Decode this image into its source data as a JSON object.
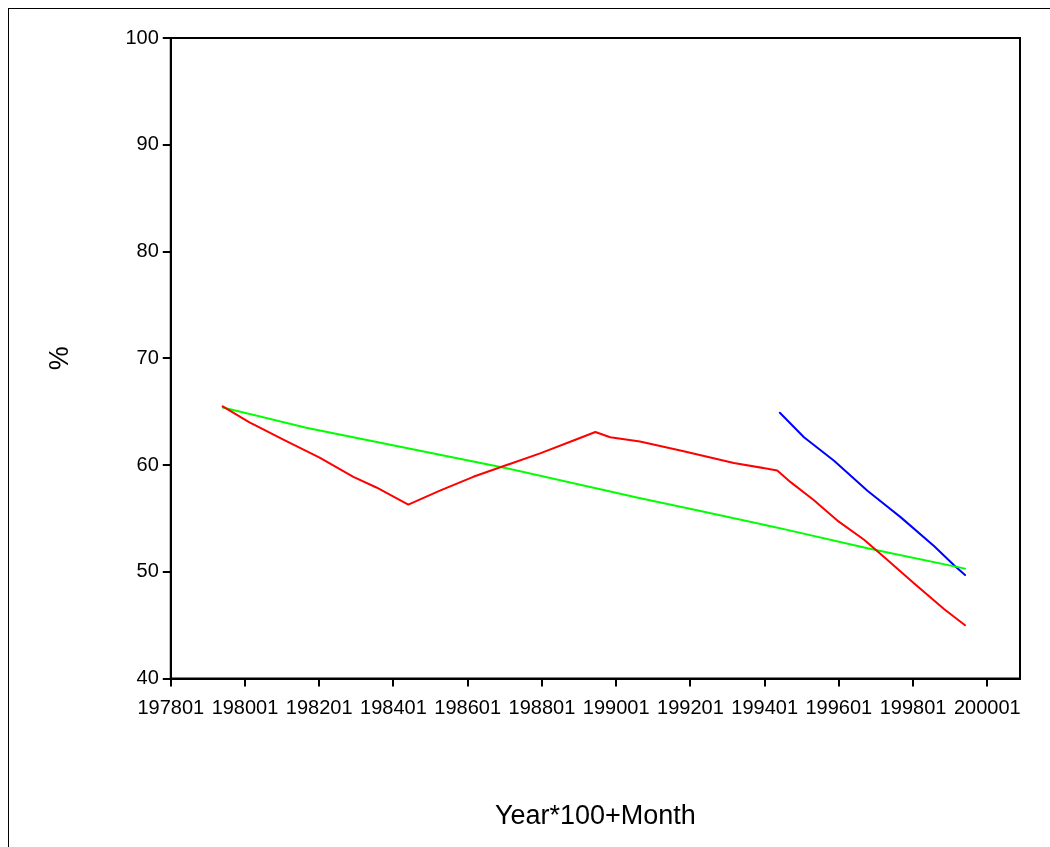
{
  "chart_data": {
    "type": "line",
    "xlabel": "Year*100+Month",
    "ylabel": "%",
    "xlim": [
      197801,
      200089
    ],
    "ylim": [
      40,
      100
    ],
    "xticks": [
      197801,
      198001,
      198201,
      198401,
      198601,
      198801,
      199001,
      199201,
      199401,
      199601,
      199801,
      200001
    ],
    "yticks": [
      40,
      50,
      60,
      70,
      80,
      90,
      100
    ],
    "grid": false,
    "legend": false,
    "marker": "none",
    "line_style": "solid",
    "series": [
      {
        "color": "#ff0000",
        "x": [
          197941,
          198013,
          198103,
          198202,
          198293,
          198355,
          198441,
          198526,
          198616,
          198706,
          198796,
          198886,
          198945,
          198985,
          199065,
          199183,
          199318,
          199435,
          199471,
          199534,
          199597,
          199669,
          199732,
          199804,
          199885,
          199941
        ],
        "values": [
          65.5,
          64.0,
          62.4,
          60.7,
          58.9,
          57.9,
          56.3,
          57.6,
          58.9,
          60.0,
          61.1,
          62.3,
          63.1,
          62.6,
          62.2,
          61.3,
          60.2,
          59.5,
          58.4,
          56.7,
          54.8,
          53.0,
          51.1,
          48.9,
          46.5,
          45.0
        ]
      },
      {
        "color": "#00ff00",
        "x": [
          197941,
          198166,
          198436,
          198706,
          199066,
          199228,
          199453,
          199678,
          199941
        ],
        "values": [
          65.4,
          63.5,
          61.6,
          59.7,
          56.9,
          55.7,
          54.0,
          52.2,
          50.3
        ]
      },
      {
        "color": "#0000ff",
        "x": [
          199442,
          199507,
          199588,
          199678,
          199768,
          199858,
          199912,
          199941
        ],
        "values": [
          64.9,
          62.6,
          60.4,
          57.6,
          55.1,
          52.4,
          50.6,
          49.7
        ]
      }
    ]
  }
}
